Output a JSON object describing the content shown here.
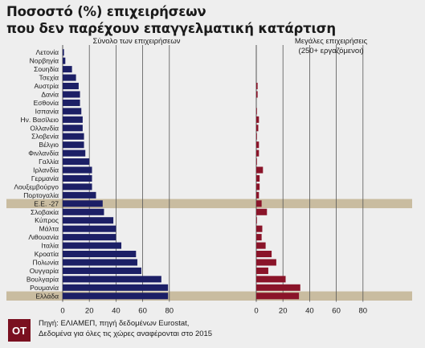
{
  "title": {
    "line1": "Ποσοστό (%) επιχειρήσεων",
    "line2": "που δεν παρέχουν επαγγελματική κατάρτιση"
  },
  "footer": {
    "logo": "ΟΤ",
    "source_line1": "Πηγή: ΕΛΙΑΜΕΠ, πηγή δεδομένων Eurostat,",
    "source_line2": "Δεδομένα για όλες τις χώρες αναφέρονται στο 2015"
  },
  "colors": {
    "total_bar": "#1c1f66",
    "large_bar": "#8a1429",
    "highlight": "#c9bca0",
    "grid": "#555555",
    "background": "#eeeeee"
  },
  "chart_data": [
    {
      "type": "bar",
      "orientation": "horizontal",
      "title": "Σύνολο των επιχειρήσεων",
      "xlim": [
        0,
        100
      ],
      "xticks": [
        0,
        20,
        40,
        60,
        80
      ],
      "categories": [
        "Λετονία",
        "Νορβηγία",
        "Σουηδία",
        "Τσεχία",
        "Αυστρία",
        "Δανία",
        "Εσθονία",
        "Ισπανία",
        "Ην. Βασίλειο",
        "Ολλανδία",
        "Σλοβενία",
        "Βέλγιο",
        "Φινλανδία",
        "Γαλλία",
        "Ιρλανδία",
        "Γερμανία",
        "Λουξεμβούργο",
        "Πορτογαλία",
        "Ε.Ε. -27",
        "Σλοβακία",
        "Κύπρος",
        "Μάλτα",
        "Λιθουανία",
        "Ιταλία",
        "Κροατία",
        "Πολωνία",
        "Ουγγαρία",
        "Βουλγαρία",
        "Ρουμανία",
        "Ελλάδα"
      ],
      "values": [
        1,
        2,
        7,
        10,
        12,
        13,
        13,
        14,
        15,
        15,
        16,
        16,
        17,
        20,
        22,
        22,
        22,
        25,
        30,
        31,
        38,
        40,
        40,
        44,
        55,
        56,
        59,
        74,
        79,
        79
      ],
      "highlighted": [
        "Ε.Ε. -27",
        "Ελλάδα"
      ]
    },
    {
      "type": "bar",
      "orientation": "horizontal",
      "title": "Μεγάλες επιχειρήσεις",
      "subtitle": "(250+ εργαζόμενοι)",
      "xlim": [
        0,
        100
      ],
      "xticks": [
        0,
        20,
        40,
        60,
        80
      ],
      "categories": [
        "Λετονία",
        "Νορβηγία",
        "Σουηδία",
        "Τσεχία",
        "Αυστρία",
        "Δανία",
        "Εσθονία",
        "Ισπανία",
        "Ην. Βασίλειο",
        "Ολλανδία",
        "Σλοβενία",
        "Βέλγιο",
        "Φινλανδία",
        "Γαλλία",
        "Ιρλανδία",
        "Γερμανία",
        "Λουξεμβούργο",
        "Πορτογαλία",
        "Ε.Ε. -27",
        "Σλοβακία",
        "Κύπρος",
        "Μάλτα",
        "Λιθουανία",
        "Ιταλία",
        "Κροατία",
        "Πολωνία",
        "Ουγγαρία",
        "Βουλγαρία",
        "Ρουμανία",
        "Ελλάδα"
      ],
      "values": [
        0,
        0,
        0,
        0,
        1,
        1,
        0,
        0.5,
        2,
        1.5,
        0.5,
        2,
        2,
        0.5,
        5,
        2.5,
        2.5,
        2,
        4,
        8,
        0.5,
        4.5,
        4,
        7,
        11.5,
        15,
        9,
        22,
        33,
        32
      ],
      "highlighted": [
        "Ε.Ε. -27",
        "Ελλάδα"
      ]
    }
  ]
}
